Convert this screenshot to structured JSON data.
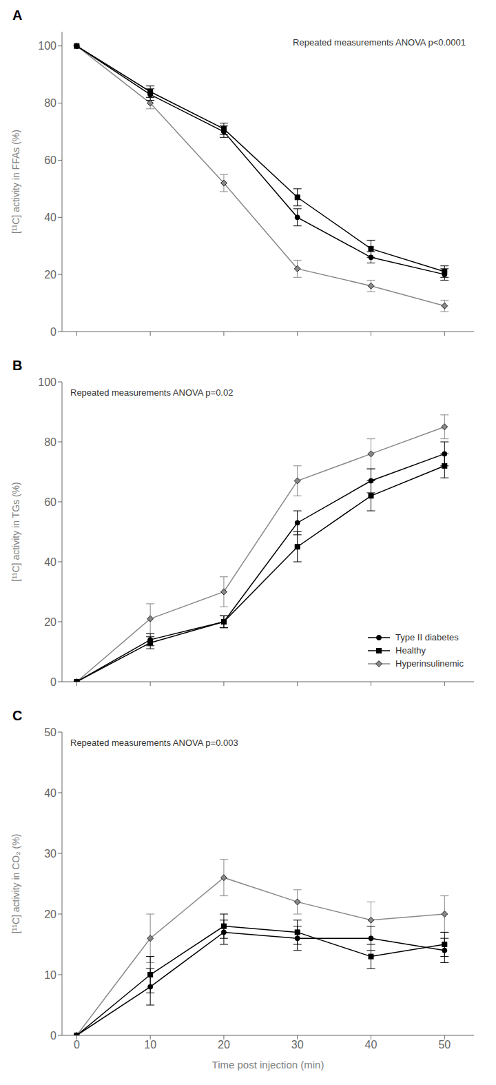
{
  "chart_data": [
    {
      "type": "line",
      "title": "A",
      "ylabel": "[¹¹C] activity in FFAs (%)",
      "annotations": [
        "Repeated measurements ANOVA p<0.0001"
      ],
      "x": [
        0,
        10,
        20,
        30,
        40,
        50
      ],
      "xlim": [
        -2,
        54
      ],
      "xticks": [
        0,
        10,
        20,
        30,
        40,
        50
      ],
      "ylim": [
        0,
        105
      ],
      "yticks": [
        0,
        20,
        40,
        60,
        80,
        100
      ],
      "grid": false,
      "tick_labels": "y",
      "series": [
        {
          "name": "Type II diabetes",
          "color": "#000000",
          "marker": "circle",
          "line_style": "solid",
          "values": [
            100,
            83,
            70,
            40,
            26,
            20
          ],
          "errors": [
            0,
            2,
            2,
            3,
            2,
            2
          ]
        },
        {
          "name": "Healthy",
          "color": "#000000",
          "marker": "square",
          "line_style": "solid",
          "values": [
            100,
            84,
            71,
            47,
            29,
            21
          ],
          "errors": [
            0,
            2,
            2,
            3,
            3,
            2
          ]
        },
        {
          "name": "Hyperinsulinemic",
          "color": "#888888",
          "marker": "diamond",
          "line_style": "solid",
          "values": [
            100,
            80,
            52,
            22,
            16,
            9
          ],
          "errors": [
            0,
            2,
            3,
            3,
            2,
            2
          ]
        }
      ]
    },
    {
      "type": "line",
      "title": "B",
      "ylabel": "[¹¹C] activity in TGs (%)",
      "annotations": [
        "Repeated measurements ANOVA p=0.02"
      ],
      "x": [
        0,
        10,
        20,
        30,
        40,
        50
      ],
      "xlim": [
        -2,
        54
      ],
      "xticks": [
        0,
        10,
        20,
        30,
        40,
        50
      ],
      "ylim": [
        0,
        100
      ],
      "yticks": [
        0,
        20,
        40,
        60,
        80,
        100
      ],
      "grid": false,
      "tick_labels": "y",
      "legend": "lower right",
      "series": [
        {
          "name": "Type II diabetes",
          "color": "#000000",
          "marker": "circle",
          "line_style": "solid",
          "values": [
            0,
            14,
            20,
            53,
            67,
            76
          ],
          "errors": [
            0,
            2,
            2,
            4,
            4,
            4
          ]
        },
        {
          "name": "Healthy",
          "color": "#000000",
          "marker": "square",
          "line_style": "solid",
          "values": [
            0,
            13,
            20,
            45,
            62,
            72
          ],
          "errors": [
            0,
            2,
            2,
            5,
            5,
            4
          ]
        },
        {
          "name": "Hyperinsulinemic",
          "color": "#888888",
          "marker": "diamond",
          "line_style": "solid",
          "values": [
            0,
            21,
            30,
            67,
            76,
            85
          ],
          "errors": [
            0,
            5,
            5,
            5,
            5,
            4
          ]
        }
      ]
    },
    {
      "type": "line",
      "title": "C",
      "ylabel": "[¹¹C] activity in CO₂ (%)",
      "xlabel": "Time post injection (min)",
      "annotations": [
        "Repeated measurements ANOVA p=0.003"
      ],
      "x": [
        0,
        10,
        20,
        30,
        40,
        50
      ],
      "xlim": [
        -2,
        54
      ],
      "xticks": [
        0,
        10,
        20,
        30,
        40,
        50
      ],
      "ylim": [
        0,
        50
      ],
      "yticks": [
        0,
        10,
        20,
        30,
        40,
        50
      ],
      "grid": false,
      "series": [
        {
          "name": "Type II diabetes",
          "color": "#000000",
          "marker": "circle",
          "line_style": "solid",
          "values": [
            0,
            8,
            17,
            16,
            16,
            14
          ],
          "errors": [
            0,
            3,
            2,
            2,
            2,
            2
          ]
        },
        {
          "name": "Healthy",
          "color": "#000000",
          "marker": "square",
          "line_style": "solid",
          "values": [
            0,
            10,
            18,
            17,
            13,
            15
          ],
          "errors": [
            0,
            3,
            2,
            2,
            2,
            2
          ]
        },
        {
          "name": "Hyperinsulinemic",
          "color": "#888888",
          "marker": "diamond",
          "line_style": "solid",
          "values": [
            0,
            16,
            26,
            22,
            19,
            20
          ],
          "errors": [
            0,
            4,
            3,
            2,
            3,
            3
          ]
        }
      ]
    }
  ]
}
